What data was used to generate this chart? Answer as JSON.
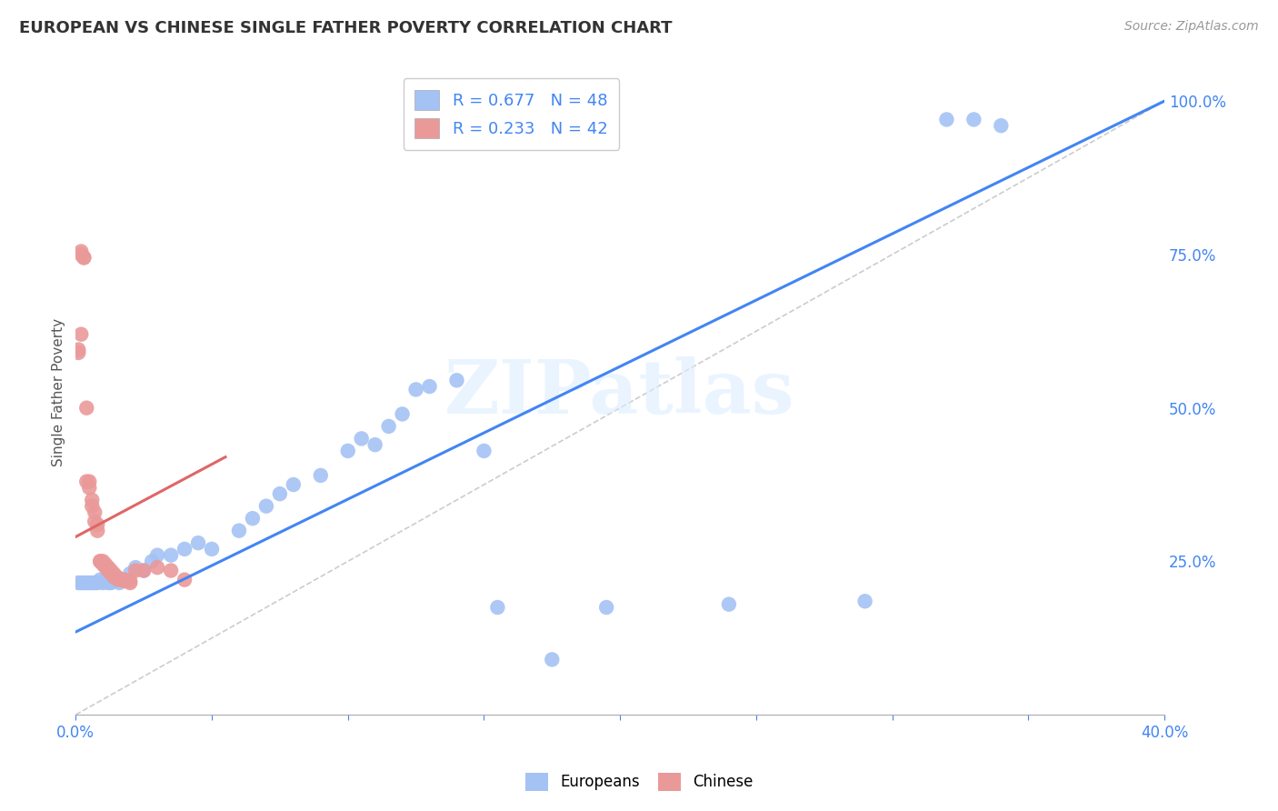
{
  "title": "EUROPEAN VS CHINESE SINGLE FATHER POVERTY CORRELATION CHART",
  "source": "Source: ZipAtlas.com",
  "ylabel": "Single Father Poverty",
  "xlim": [
    0.0,
    0.4
  ],
  "ylim": [
    0.0,
    1.05
  ],
  "blue_color": "#a4c2f4",
  "pink_color": "#ea9999",
  "blue_line_color": "#4285f4",
  "pink_line_color": "#e06666",
  "dashed_line_color": "#c0c0c0",
  "legend_R_blue": "R = 0.677",
  "legend_N_blue": "N = 48",
  "legend_R_pink": "R = 0.233",
  "legend_N_pink": "N = 42",
  "watermark": "ZIPatlas",
  "blue_points": [
    [
      0.001,
      0.215
    ],
    [
      0.002,
      0.215
    ],
    [
      0.003,
      0.215
    ],
    [
      0.004,
      0.215
    ],
    [
      0.005,
      0.215
    ],
    [
      0.006,
      0.215
    ],
    [
      0.007,
      0.215
    ],
    [
      0.008,
      0.215
    ],
    [
      0.009,
      0.22
    ],
    [
      0.01,
      0.215
    ],
    [
      0.011,
      0.22
    ],
    [
      0.012,
      0.215
    ],
    [
      0.013,
      0.215
    ],
    [
      0.014,
      0.22
    ],
    [
      0.015,
      0.22
    ],
    [
      0.016,
      0.215
    ],
    [
      0.02,
      0.23
    ],
    [
      0.022,
      0.24
    ],
    [
      0.025,
      0.235
    ],
    [
      0.028,
      0.25
    ],
    [
      0.03,
      0.26
    ],
    [
      0.035,
      0.26
    ],
    [
      0.04,
      0.27
    ],
    [
      0.045,
      0.28
    ],
    [
      0.05,
      0.27
    ],
    [
      0.06,
      0.3
    ],
    [
      0.065,
      0.32
    ],
    [
      0.07,
      0.34
    ],
    [
      0.075,
      0.36
    ],
    [
      0.08,
      0.375
    ],
    [
      0.09,
      0.39
    ],
    [
      0.1,
      0.43
    ],
    [
      0.105,
      0.45
    ],
    [
      0.11,
      0.44
    ],
    [
      0.115,
      0.47
    ],
    [
      0.12,
      0.49
    ],
    [
      0.125,
      0.53
    ],
    [
      0.13,
      0.535
    ],
    [
      0.14,
      0.545
    ],
    [
      0.15,
      0.43
    ],
    [
      0.155,
      0.175
    ],
    [
      0.175,
      0.09
    ],
    [
      0.195,
      0.175
    ],
    [
      0.24,
      0.18
    ],
    [
      0.29,
      0.185
    ],
    [
      0.32,
      0.97
    ],
    [
      0.33,
      0.97
    ],
    [
      0.34,
      0.96
    ]
  ],
  "pink_points": [
    [
      0.001,
      0.595
    ],
    [
      0.001,
      0.59
    ],
    [
      0.002,
      0.755
    ],
    [
      0.002,
      0.62
    ],
    [
      0.002,
      0.75
    ],
    [
      0.003,
      0.745
    ],
    [
      0.003,
      0.745
    ],
    [
      0.004,
      0.5
    ],
    [
      0.004,
      0.38
    ],
    [
      0.005,
      0.38
    ],
    [
      0.005,
      0.37
    ],
    [
      0.006,
      0.35
    ],
    [
      0.006,
      0.34
    ],
    [
      0.007,
      0.33
    ],
    [
      0.007,
      0.315
    ],
    [
      0.008,
      0.31
    ],
    [
      0.008,
      0.3
    ],
    [
      0.009,
      0.25
    ],
    [
      0.009,
      0.25
    ],
    [
      0.01,
      0.25
    ],
    [
      0.01,
      0.245
    ],
    [
      0.011,
      0.245
    ],
    [
      0.011,
      0.24
    ],
    [
      0.012,
      0.24
    ],
    [
      0.012,
      0.235
    ],
    [
      0.013,
      0.235
    ],
    [
      0.013,
      0.23
    ],
    [
      0.014,
      0.23
    ],
    [
      0.014,
      0.225
    ],
    [
      0.015,
      0.225
    ],
    [
      0.015,
      0.222
    ],
    [
      0.016,
      0.222
    ],
    [
      0.016,
      0.22
    ],
    [
      0.018,
      0.22
    ],
    [
      0.018,
      0.218
    ],
    [
      0.02,
      0.218
    ],
    [
      0.02,
      0.215
    ],
    [
      0.022,
      0.235
    ],
    [
      0.025,
      0.235
    ],
    [
      0.03,
      0.24
    ],
    [
      0.035,
      0.235
    ],
    [
      0.04,
      0.22
    ]
  ],
  "blue_line_x": [
    0.0,
    0.4
  ],
  "blue_line_y": [
    0.135,
    1.0
  ],
  "pink_line_x": [
    0.0,
    0.055
  ],
  "pink_line_y": [
    0.29,
    0.42
  ],
  "dash_line_x": [
    0.0,
    0.4
  ],
  "dash_line_y": [
    0.0,
    1.0
  ]
}
